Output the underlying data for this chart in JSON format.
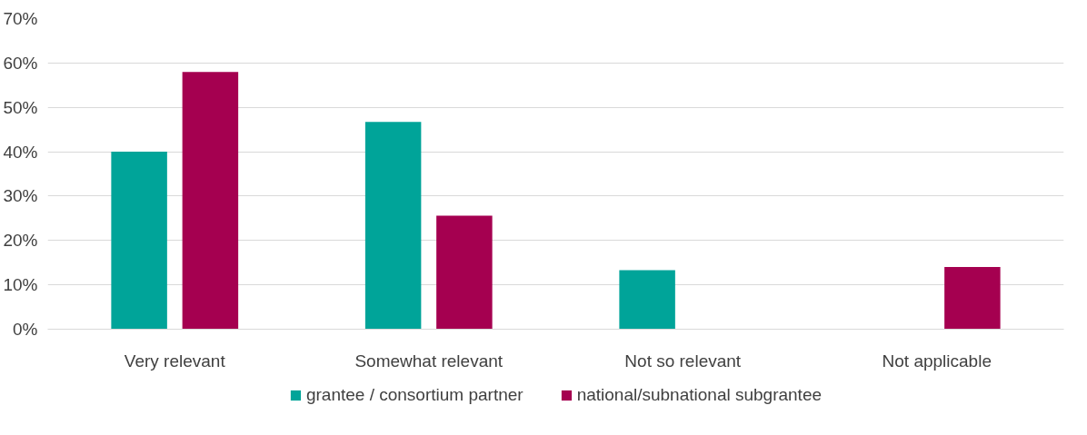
{
  "chart_data": {
    "type": "bar",
    "categories": [
      "Very relevant",
      "Somewhat relevant",
      "Not so relevant",
      "Not applicable"
    ],
    "series": [
      {
        "name": "grantee / consortium partner",
        "color": "#00a499",
        "values": [
          40,
          46.7,
          13.3,
          0
        ]
      },
      {
        "name": "national/subnational subgrantee",
        "color": "#a50050",
        "values": [
          58,
          25.6,
          0,
          14
        ]
      }
    ],
    "ylim": [
      0,
      70
    ],
    "yticks": [
      {
        "value": 0,
        "label": "0%"
      },
      {
        "value": 10,
        "label": "10%"
      },
      {
        "value": 20,
        "label": "20%"
      },
      {
        "value": 30,
        "label": "30%"
      },
      {
        "value": 40,
        "label": "40%"
      },
      {
        "value": 50,
        "label": "50%"
      },
      {
        "value": 60,
        "label": "60%"
      },
      {
        "value": 70,
        "label": "70%"
      }
    ],
    "grid": "y",
    "legend": "bottom"
  }
}
